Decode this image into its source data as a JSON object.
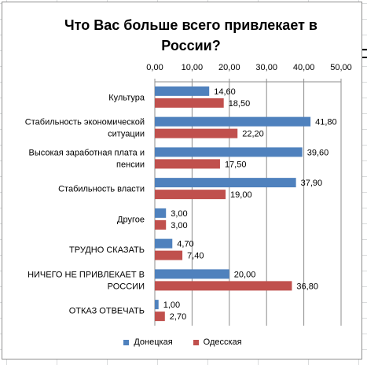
{
  "chart_data": {
    "type": "bar",
    "orientation": "horizontal",
    "title": "Что Вас больше всего привлекает в России?",
    "categories": [
      "Культура",
      "Стабильность экономической ситуации",
      "Высокая заработная плата и пенсии",
      "Стабильность власти",
      "Другое",
      "ТРУДНО СКАЗАТЬ",
      "НИЧЕГО НЕ ПРИВЛЕКАЕТ В РОССИИ",
      "ОТКАЗ ОТВЕЧАТЬ"
    ],
    "category_lines": [
      [
        "Культура"
      ],
      [
        "Стабильность экономической",
        "ситуации"
      ],
      [
        "Высокая заработная плата и",
        "пенсии"
      ],
      [
        "Стабильность власти"
      ],
      [
        "Другое"
      ],
      [
        "ТРУДНО СКАЗАТЬ"
      ],
      [
        "НИЧЕГО НЕ ПРИВЛЕКАЕТ В",
        "РОССИИ"
      ],
      [
        "ОТКАЗ ОТВЕЧАТЬ"
      ]
    ],
    "series": [
      {
        "name": "Донецкая",
        "color": "#4f81bd",
        "values": [
          14.6,
          41.8,
          39.6,
          37.9,
          3.0,
          4.7,
          20.0,
          1.0
        ],
        "labels": [
          "14,60",
          "41,80",
          "39,60",
          "37,90",
          "3,00",
          "4,70",
          "20,00",
          "1,00"
        ]
      },
      {
        "name": "Одесская",
        "color": "#c0504d",
        "values": [
          18.5,
          22.2,
          17.5,
          19.0,
          3.0,
          7.4,
          36.8,
          2.7
        ],
        "labels": [
          "18,50",
          "22,20",
          "17,50",
          "19,00",
          "3,00",
          "7,40",
          "36,80",
          "2,70"
        ]
      }
    ],
    "xlim": [
      0,
      50
    ],
    "x_ticks": [
      "0,00",
      "10,00",
      "20,00",
      "30,00",
      "40,00",
      "50,00"
    ],
    "x_axis_position": "top",
    "grid": true,
    "legend_position": "bottom"
  }
}
